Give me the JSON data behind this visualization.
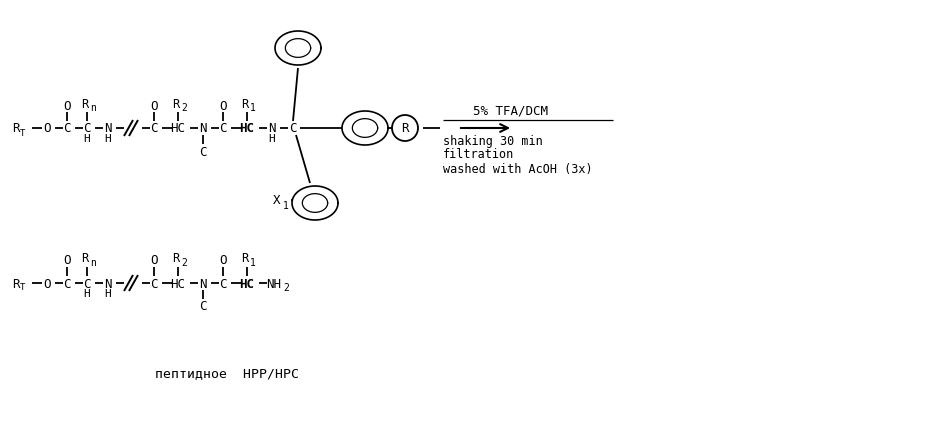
{
  "bg_color": "#ffffff",
  "line_color": "#000000",
  "font_family": "monospace",
  "reaction_text": "5% TFA/DCM",
  "reaction_details": [
    "shaking 30 min",
    "filtration",
    "washed with AcOH (3x)"
  ],
  "bottom_label": "пептидное  НРР/НРС"
}
